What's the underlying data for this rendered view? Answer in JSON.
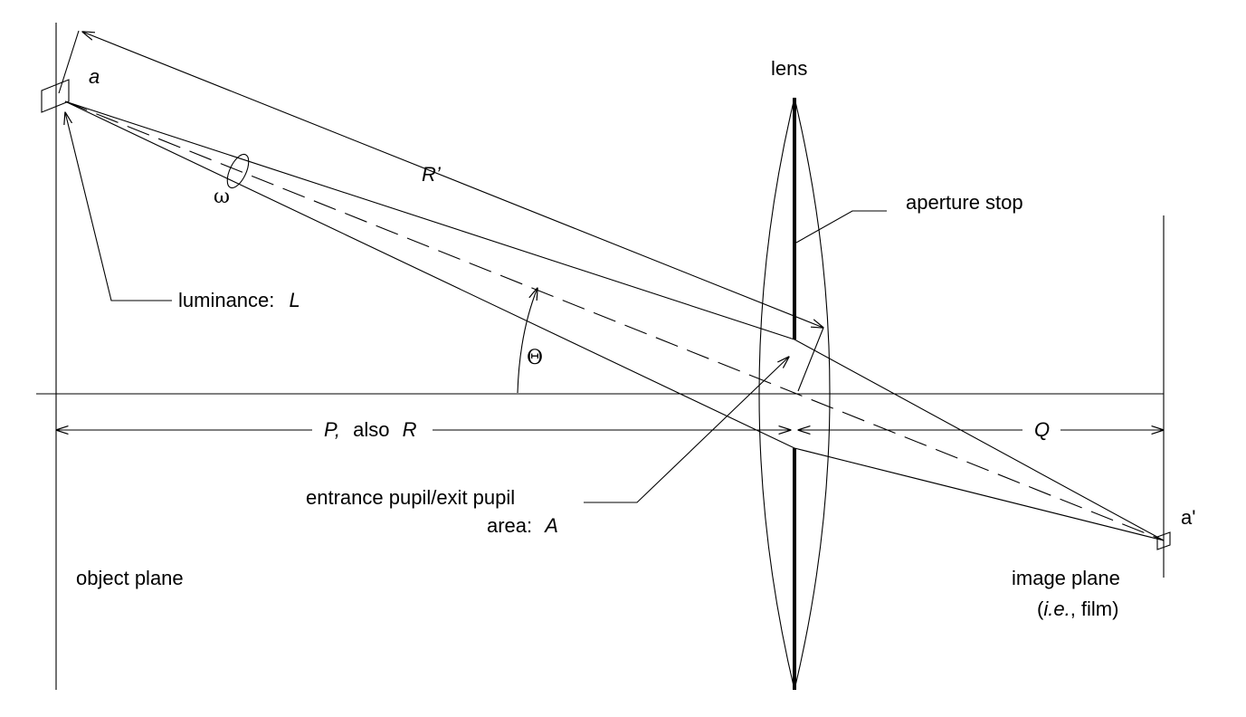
{
  "labels": {
    "a": "a",
    "lens": "lens",
    "r_prime": "R’",
    "aperture_stop": "aperture stop",
    "omega": "ω",
    "luminance_prefix": "luminance:",
    "luminance_symbol": "L",
    "theta": "Θ",
    "p_prefix": "P,",
    "p_suffix": "also",
    "r_symbol": "R",
    "q": "Q",
    "entrance_pupil": "entrance pupil/exit pupil",
    "area_prefix": "area:",
    "area_symbol": "A",
    "a_prime": "a'",
    "object_plane": "object plane",
    "image_plane": "image plane",
    "film_open": "(",
    "film_ie": "i.e.",
    "film_rest": ", film)"
  }
}
